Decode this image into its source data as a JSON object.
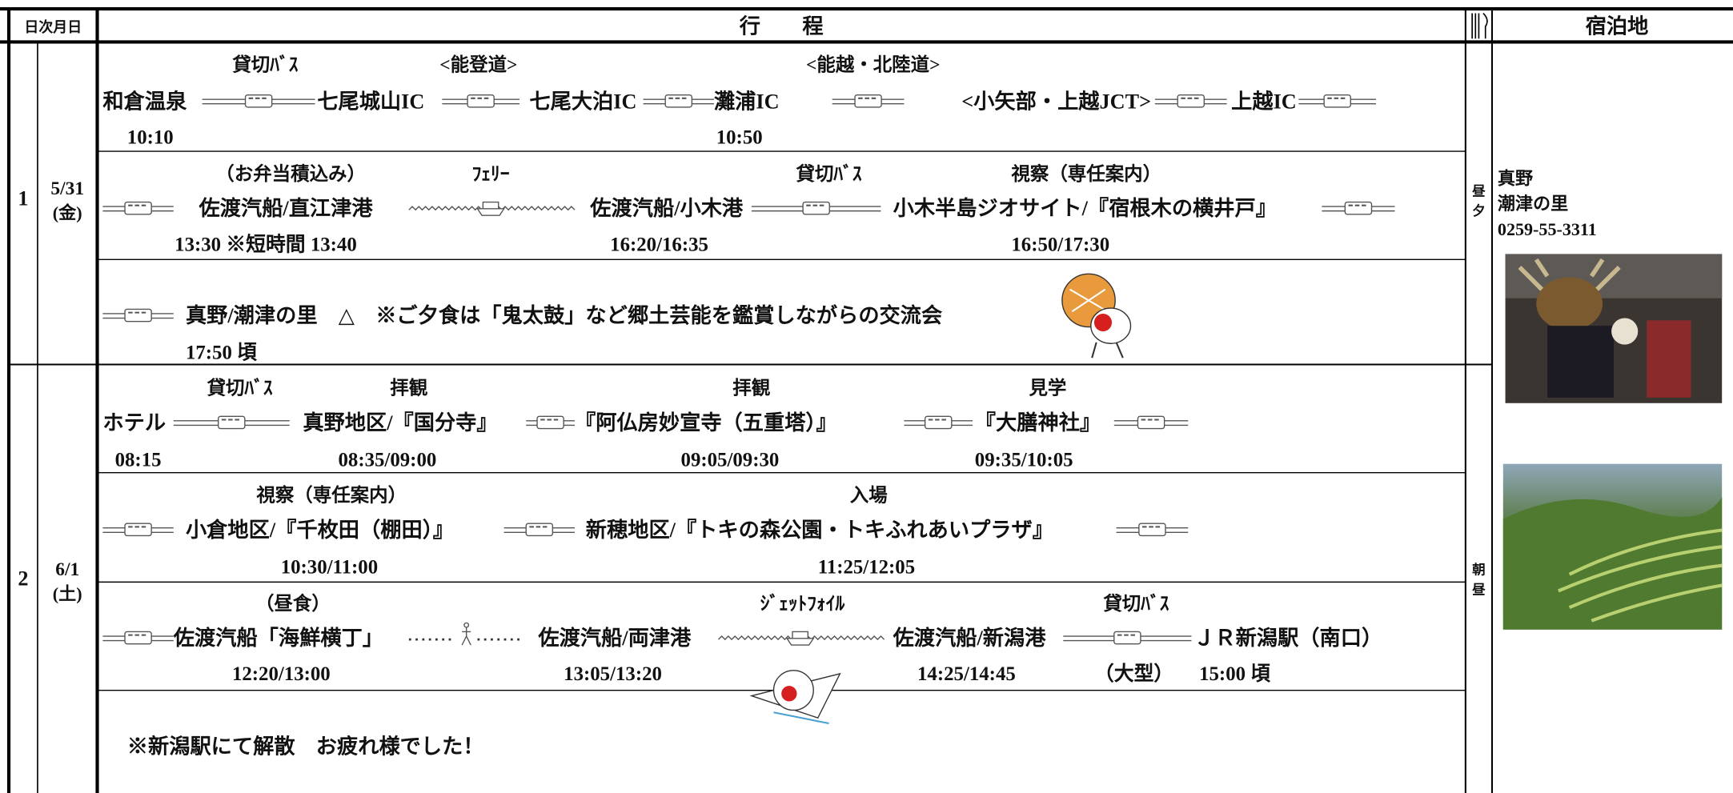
{
  "header": {
    "day": "日次月日",
    "itinerary": "行　　程",
    "hotel": "宿泊地"
  },
  "days": [
    {
      "day": "1",
      "date": "5/31",
      "weekday": "(金)",
      "meals": [
        "昼",
        "夕"
      ],
      "hotel": [
        "真野",
        "潮津の里",
        "0259-55-3311"
      ],
      "segments": [
        {
          "labels": [
            "貸切ﾊﾞｽ",
            "<能登道>",
            "<能越・北陸道>"
          ],
          "route": [
            "和倉温泉",
            "七尾城山IC",
            "七尾大泊IC",
            "灘浦IC",
            "<小矢部・上越JCT>",
            "上越IC"
          ],
          "times": [
            "10:10",
            "10:50"
          ]
        },
        {
          "labels": [
            "（お弁当積込み）",
            "ﾌｪﾘｰ",
            "貸切ﾊﾞｽ",
            "視察（専任案内）"
          ],
          "route": [
            "佐渡汽船/直江津港",
            "佐渡汽船/小木港",
            "小木半島ジオサイト/『宿根木の横井戸』"
          ],
          "times": [
            "13:30 ※短時間 13:40",
            "16:20/16:35",
            "16:50/17:30"
          ]
        },
        {
          "route": [
            "真野/潮津の里　△　※ご夕食は「鬼太鼓」など郷土芸能を鑑賞しながらの交流会"
          ],
          "times": [
            "17:50 頃"
          ]
        }
      ]
    },
    {
      "day": "2",
      "date": "6/1",
      "weekday": "(土)",
      "meals": [
        "朝",
        "昼"
      ],
      "segments": [
        {
          "labels": [
            "貸切ﾊﾞｽ",
            "拝観",
            "拝観",
            "見学"
          ],
          "route": [
            "ホテル",
            "真野地区/『国分寺』",
            "『阿仏房妙宣寺（五重塔）』",
            "『大膳神社』"
          ],
          "times": [
            "08:15",
            "08:35/09:00",
            "09:05/09:30",
            "09:35/10:05"
          ]
        },
        {
          "labels": [
            "視察（専任案内）",
            "入場"
          ],
          "route": [
            "小倉地区/『千枚田（棚田）』",
            "新穂地区/『トキの森公園・トキふれあいプラザ』"
          ],
          "times": [
            "10:30/11:00",
            "11:25/12:05"
          ]
        },
        {
          "labels": [
            "（昼食）",
            "ｼﾞｪｯﾄﾌｫｲﾙ",
            "貸切ﾊﾞｽ"
          ],
          "route": [
            "佐渡汽船「海鮮横丁」",
            "佐渡汽船/両津港",
            "佐渡汽船/新潟港",
            "ＪＲ新潟駅（南口）"
          ],
          "times": [
            "12:20/13:00",
            "13:05/13:20",
            "14:25/14:45",
            "（大型）",
            "15:00 頃"
          ]
        },
        {
          "route": [
            "※新潟駅にて解散　お疲れ様でした！"
          ]
        }
      ]
    }
  ]
}
